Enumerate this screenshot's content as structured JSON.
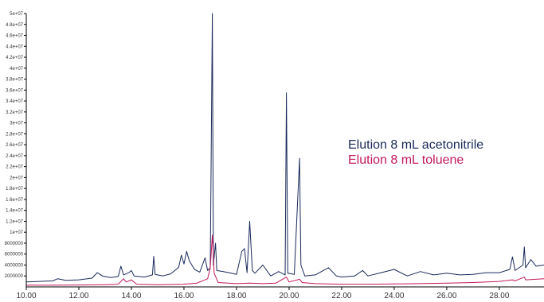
{
  "chart_data": {
    "type": "line",
    "title": "",
    "xlabel": "",
    "ylabel": "",
    "xlim": [
      10.0,
      29.7
    ],
    "ylim": [
      0,
      50000000
    ],
    "grid": false,
    "legend_position": "right",
    "x_ticks": [
      "10.00",
      "12.00",
      "14.00",
      "16.00",
      "18.00",
      "20.00",
      "22.00",
      "24.00",
      "26.00",
      "28.00"
    ],
    "y_ticks": [
      "2000000",
      "4000000",
      "6000000",
      "8000000",
      "1e+07",
      "1.2e+07",
      "1.4e+07",
      "1.6e+07",
      "1.8e+07",
      "2e+07",
      "2.2e+07",
      "2.4e+07",
      "2.6e+07",
      "2.8e+07",
      "3e+07",
      "3.2e+07",
      "3.4e+07",
      "3.6e+07",
      "3.8e+07",
      "4e+07",
      "4.2e+07",
      "4.4e+07",
      "4.6e+07",
      "4.8e+07",
      "5e+07"
    ],
    "series": [
      {
        "name": "Elution 8 mL acetonitrile",
        "color": "#1a2a5a",
        "points": [
          [
            10.0,
            900000
          ],
          [
            10.5,
            1000000
          ],
          [
            11.0,
            1100000
          ],
          [
            11.2,
            1500000
          ],
          [
            11.5,
            1200000
          ],
          [
            12.0,
            1300000
          ],
          [
            12.5,
            1600000
          ],
          [
            12.7,
            2600000
          ],
          [
            12.9,
            2000000
          ],
          [
            13.2,
            1700000
          ],
          [
            13.5,
            1900000
          ],
          [
            13.6,
            3800000
          ],
          [
            13.7,
            2200000
          ],
          [
            13.9,
            2600000
          ],
          [
            14.0,
            3000000
          ],
          [
            14.1,
            2000000
          ],
          [
            14.5,
            1800000
          ],
          [
            14.8,
            2200000
          ],
          [
            14.85,
            5600000
          ],
          [
            14.9,
            2300000
          ],
          [
            15.2,
            2000000
          ],
          [
            15.5,
            2400000
          ],
          [
            15.8,
            3600000
          ],
          [
            15.9,
            5800000
          ],
          [
            16.0,
            4200000
          ],
          [
            16.1,
            6500000
          ],
          [
            16.2,
            4800000
          ],
          [
            16.4,
            3200000
          ],
          [
            16.6,
            2700000
          ],
          [
            16.8,
            5300000
          ],
          [
            16.9,
            3000000
          ],
          [
            17.0,
            3500000
          ],
          [
            17.08,
            50000000
          ],
          [
            17.12,
            4000000
          ],
          [
            17.2,
            8000000
          ],
          [
            17.25,
            3000000
          ],
          [
            17.5,
            2800000
          ],
          [
            17.8,
            2500000
          ],
          [
            18.0,
            2300000
          ],
          [
            18.2,
            6500000
          ],
          [
            18.3,
            7000000
          ],
          [
            18.4,
            2600000
          ],
          [
            18.5,
            12000000
          ],
          [
            18.6,
            3000000
          ],
          [
            18.7,
            2500000
          ],
          [
            19.0,
            4000000
          ],
          [
            19.3,
            2000000
          ],
          [
            19.6,
            2800000
          ],
          [
            19.85,
            2200000
          ],
          [
            19.9,
            35500000
          ],
          [
            19.95,
            2500000
          ],
          [
            20.2,
            2300000
          ],
          [
            20.4,
            23500000
          ],
          [
            20.45,
            4000000
          ],
          [
            20.6,
            2000000
          ],
          [
            21.0,
            2200000
          ],
          [
            21.3,
            3000000
          ],
          [
            21.5,
            3500000
          ],
          [
            21.8,
            2000000
          ],
          [
            22.0,
            1800000
          ],
          [
            22.5,
            2000000
          ],
          [
            22.8,
            3000000
          ],
          [
            23.0,
            2000000
          ],
          [
            23.5,
            2600000
          ],
          [
            24.0,
            3200000
          ],
          [
            24.5,
            2000000
          ],
          [
            25.0,
            2800000
          ],
          [
            25.5,
            2200000
          ],
          [
            26.0,
            2500000
          ],
          [
            26.5,
            2200000
          ],
          [
            27.0,
            2300000
          ],
          [
            27.5,
            2600000
          ],
          [
            28.0,
            2600000
          ],
          [
            28.4,
            3200000
          ],
          [
            28.5,
            5500000
          ],
          [
            28.6,
            3000000
          ],
          [
            28.9,
            4000000
          ],
          [
            28.95,
            7300000
          ],
          [
            29.0,
            3500000
          ],
          [
            29.2,
            5000000
          ],
          [
            29.4,
            3800000
          ],
          [
            29.7,
            4000000
          ]
        ]
      },
      {
        "name": "Elution 8 mL toluene",
        "color": "#c2185b",
        "points": [
          [
            10.0,
            300000
          ],
          [
            11.0,
            300000
          ],
          [
            12.0,
            350000
          ],
          [
            13.0,
            400000
          ],
          [
            13.5,
            500000
          ],
          [
            13.7,
            1500000
          ],
          [
            13.8,
            900000
          ],
          [
            14.0,
            1300000
          ],
          [
            14.2,
            500000
          ],
          [
            15.0,
            400000
          ],
          [
            16.0,
            500000
          ],
          [
            16.5,
            700000
          ],
          [
            16.9,
            1500000
          ],
          [
            17.0,
            3500000
          ],
          [
            17.08,
            9500000
          ],
          [
            17.15,
            2500000
          ],
          [
            17.3,
            800000
          ],
          [
            18.0,
            600000
          ],
          [
            18.5,
            700000
          ],
          [
            19.0,
            600000
          ],
          [
            19.5,
            700000
          ],
          [
            19.9,
            1800000
          ],
          [
            20.0,
            900000
          ],
          [
            20.4,
            1400000
          ],
          [
            20.5,
            800000
          ],
          [
            21.0,
            600000
          ],
          [
            22.0,
            500000
          ],
          [
            23.0,
            500000
          ],
          [
            24.0,
            550000
          ],
          [
            25.0,
            600000
          ],
          [
            26.0,
            700000
          ],
          [
            27.0,
            800000
          ],
          [
            28.0,
            1000000
          ],
          [
            28.5,
            1300000
          ],
          [
            28.6,
            1100000
          ],
          [
            28.95,
            1800000
          ],
          [
            29.0,
            1300000
          ],
          [
            29.7,
            1500000
          ]
        ]
      }
    ]
  }
}
